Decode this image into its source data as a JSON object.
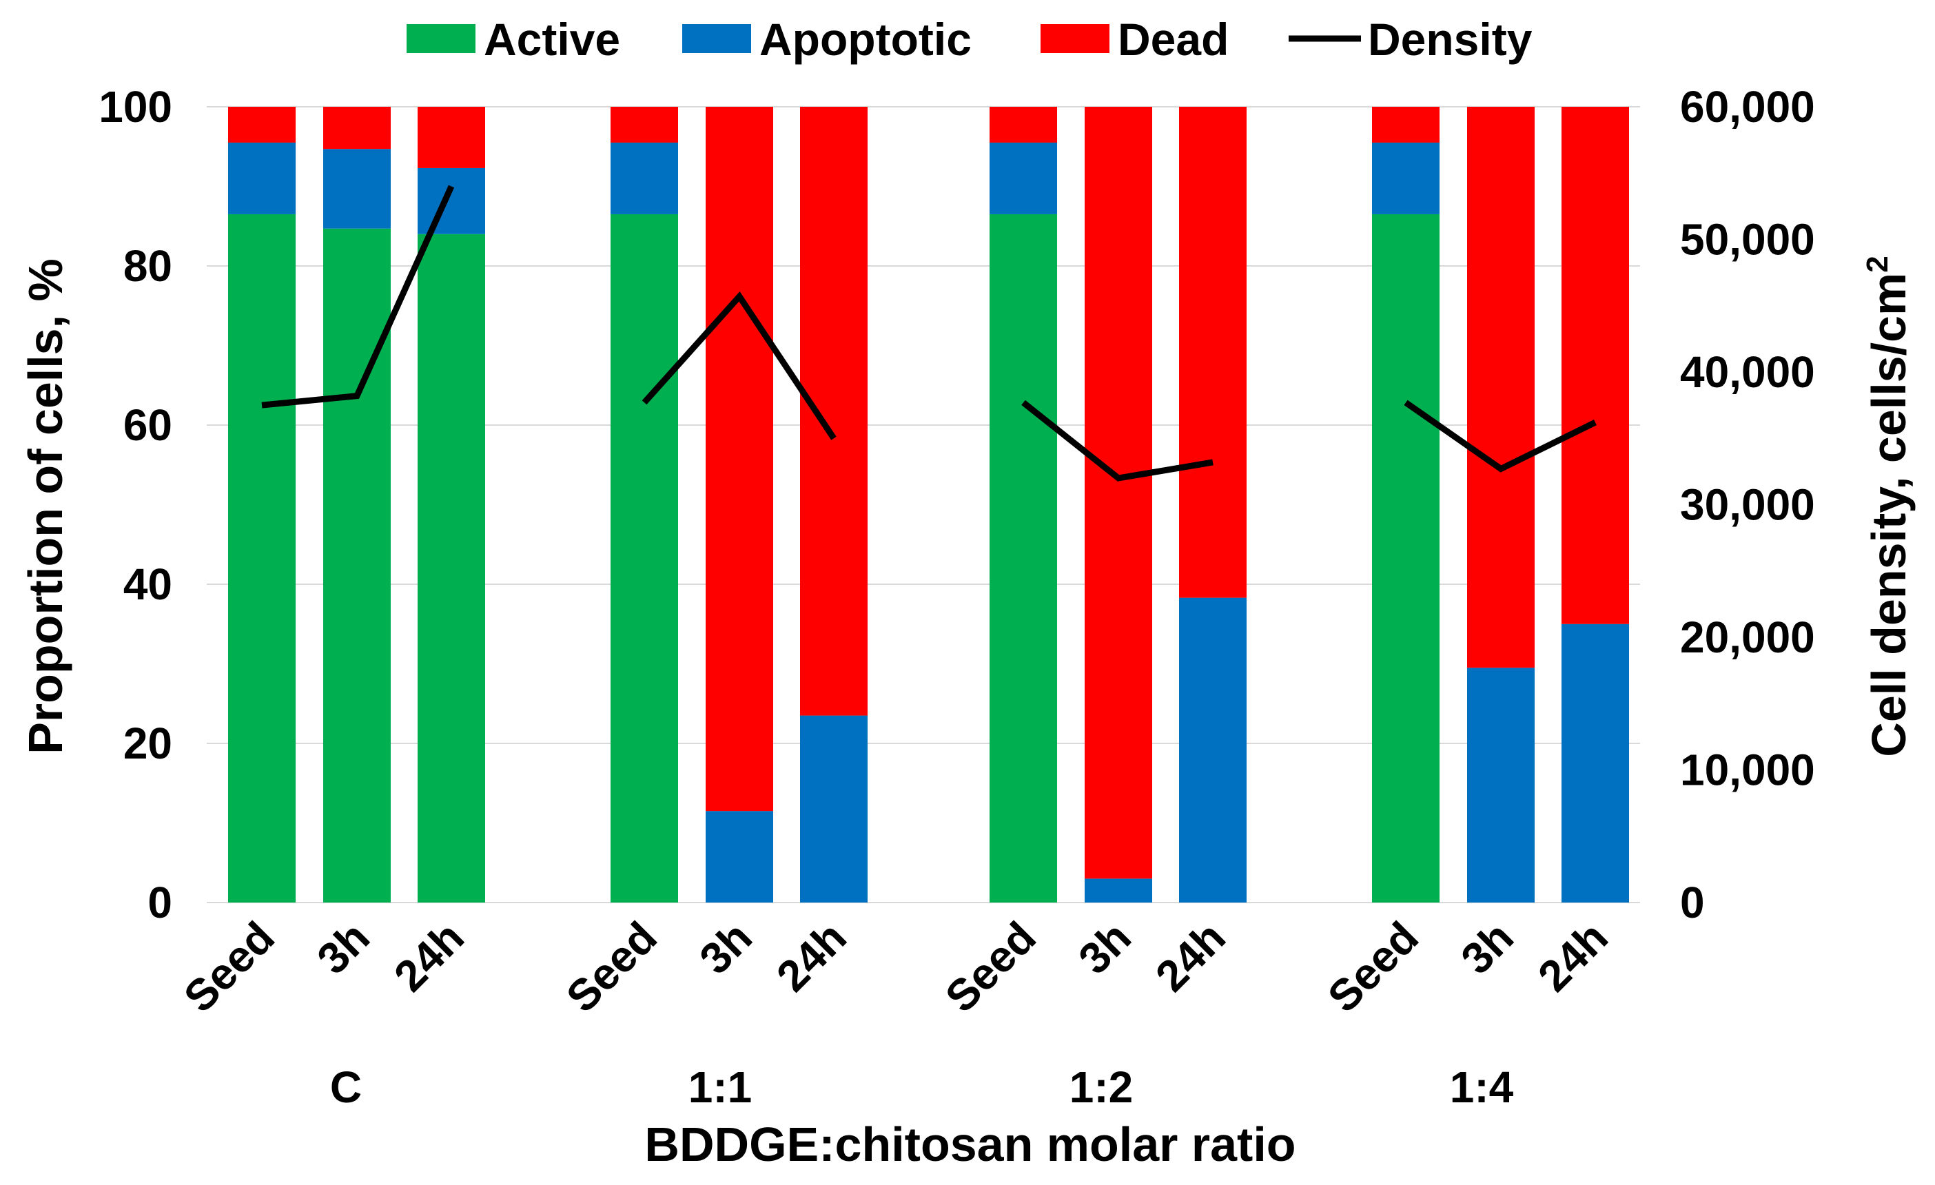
{
  "chart_data": {
    "type": "bar",
    "subtype": "stacked-bar-with-line",
    "groups": [
      {
        "label": "C",
        "categories": [
          "Seed",
          "3h",
          "24h"
        ]
      },
      {
        "label": "1:1",
        "categories": [
          "Seed",
          "3h",
          "24h"
        ]
      },
      {
        "label": "1:2",
        "categories": [
          "Seed",
          "3h",
          "24h"
        ]
      },
      {
        "label": "1:4",
        "categories": [
          "Seed",
          "3h",
          "24h"
        ]
      }
    ],
    "series": [
      {
        "name": "Active",
        "color": "#00B050",
        "values": [
          86.5,
          84.7,
          84,
          86.5,
          0,
          0,
          86.5,
          0,
          0,
          86.5,
          0,
          0
        ]
      },
      {
        "name": "Apoptotic",
        "color": "#0070C0",
        "values": [
          9,
          10,
          8.3,
          9,
          11.5,
          23.5,
          9,
          3,
          38.3,
          9,
          29.5,
          35
        ]
      },
      {
        "name": "Dead",
        "color": "#FF0000",
        "values": [
          4.5,
          5.3,
          7.7,
          4.5,
          88.5,
          76.5,
          4.5,
          97,
          61.7,
          4.5,
          70.5,
          65
        ]
      }
    ],
    "line_series": {
      "name": "Density",
      "color": "#000000",
      "values": [
        37500,
        38200,
        54000,
        37700,
        45700,
        35000,
        37700,
        32000,
        33200,
        37700,
        32700,
        36200
      ]
    },
    "ylabel": "Proportion of cells, %",
    "ylim": [
      0,
      100
    ],
    "yticks": [
      "0",
      "20",
      "40",
      "60",
      "80",
      "100"
    ],
    "y2label": "Cell density, cells/cm",
    "y2label_superscript": "2",
    "y2lim": [
      0,
      60000
    ],
    "y2ticks": [
      "0",
      "10,000",
      "20,000",
      "30,000",
      "40,000",
      "50,000",
      "60,000"
    ],
    "xlabel": "BDDGE:chitosan molar ratio",
    "legend": [
      "Active",
      "Apoptotic",
      "Dead",
      "Density"
    ],
    "legend_position": "top",
    "grid": true
  }
}
